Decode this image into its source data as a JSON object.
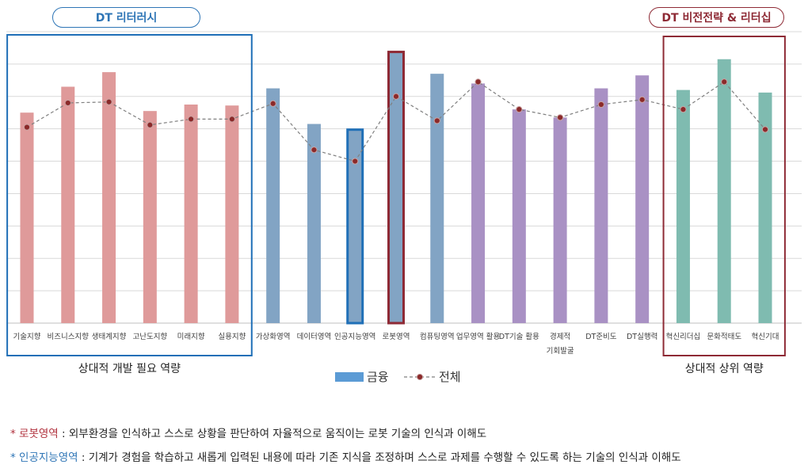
{
  "header": {
    "left_pill": "DT 리터러시",
    "right_pill": "DT 비전전략 & 리터십"
  },
  "chart_data": {
    "type": "bar",
    "title": "",
    "xlabel": "",
    "ylabel": "",
    "ylim": [
      0,
      9
    ],
    "grid": true,
    "legend_position": "bottom-center",
    "categories": [
      "기술지향",
      "비즈니스지향",
      "생태계지향",
      "고난도지향",
      "미래지향",
      "실용지향",
      "가상화영역",
      "데이터영역",
      "인공지능영역",
      "로봇영역",
      "컴퓨팅영역",
      "업무영역 활용",
      "DT기술 활용",
      "경제적 기회발굴",
      "DT준비도",
      "DT실행력",
      "혁신리더십",
      "문화적태도",
      "혁신기대"
    ],
    "category_label_lines": [
      [
        "기술지향"
      ],
      [
        "비즈니스지향"
      ],
      [
        "생태계지향"
      ],
      [
        "고난도지향"
      ],
      [
        "미래지향"
      ],
      [
        "실용지향"
      ],
      [
        "가상화영역"
      ],
      [
        "데이터영역"
      ],
      [
        "인공지능영역"
      ],
      [
        "로봇영역"
      ],
      [
        "컴퓨팅영역"
      ],
      [
        "업무영역 활용"
      ],
      [
        "DT기술 활용"
      ],
      [
        "경제적",
        "기회발굴"
      ],
      [
        "DT준비도"
      ],
      [
        "DT실행력"
      ],
      [
        "혁신리더십"
      ],
      [
        "문화적태도"
      ],
      [
        "혁신기대"
      ]
    ],
    "series": [
      {
        "name": "금융",
        "kind": "bar",
        "legend_color": "#5b9bd5",
        "values": [
          6.5,
          7.3,
          7.75,
          6.55,
          6.75,
          6.72,
          7.25,
          6.15,
          5.95,
          8.35,
          7.7,
          7.4,
          6.6,
          6.35,
          7.25,
          7.65,
          7.2,
          8.15,
          7.12
        ]
      },
      {
        "name": "전체",
        "kind": "line",
        "values": [
          6.05,
          6.8,
          6.83,
          6.12,
          6.3,
          6.3,
          6.78,
          5.35,
          5.0,
          7.0,
          6.25,
          7.45,
          6.6,
          6.35,
          6.75,
          6.9,
          6.6,
          7.45,
          5.98
        ]
      }
    ],
    "bar_colors": [
      "#df9a9a",
      "#df9a9a",
      "#df9a9a",
      "#df9a9a",
      "#df9a9a",
      "#df9a9a",
      "#82a4c4",
      "#82a4c4",
      "#82a4c4",
      "#82a4c4",
      "#82a4c4",
      "#a991c4",
      "#a991c4",
      "#a991c4",
      "#a991c4",
      "#a991c4",
      "#7fbbb0",
      "#7fbbb0",
      "#7fbbb0"
    ],
    "highlighted_bars": [
      {
        "index": 8,
        "outline_color": "#1f6fb7"
      },
      {
        "index": 9,
        "outline_color": "#8e2a35"
      }
    ],
    "groups": [
      {
        "label": "상대적 개발 필요 역량",
        "from": 0,
        "to": 5,
        "outline_color": "#1f6fb7"
      },
      {
        "label": "상대적 상위 역량",
        "from": 16,
        "to": 18,
        "outline_color": "#8e2a35"
      }
    ]
  },
  "legend": {
    "bar_label": "금융",
    "line_label": "전체"
  },
  "notes": [
    {
      "star": "* ",
      "term": "로봇영역",
      "text": " : 외부환경을 인식하고 스스로 상황을 판단하여 자율적으로 움직이는 로봇 기술의 인식과 이해도",
      "color": "#b0303c"
    },
    {
      "star": "* ",
      "term": "인공지능영역",
      "text": " : 기계가 경험을 학습하고 새롭게 입력된 내용에 따라 기존 지식을 조정하며 스스로 과제를 수행할 수 있도록 하는 기술의 인식과 이해도",
      "color": "#2e75b6"
    }
  ]
}
